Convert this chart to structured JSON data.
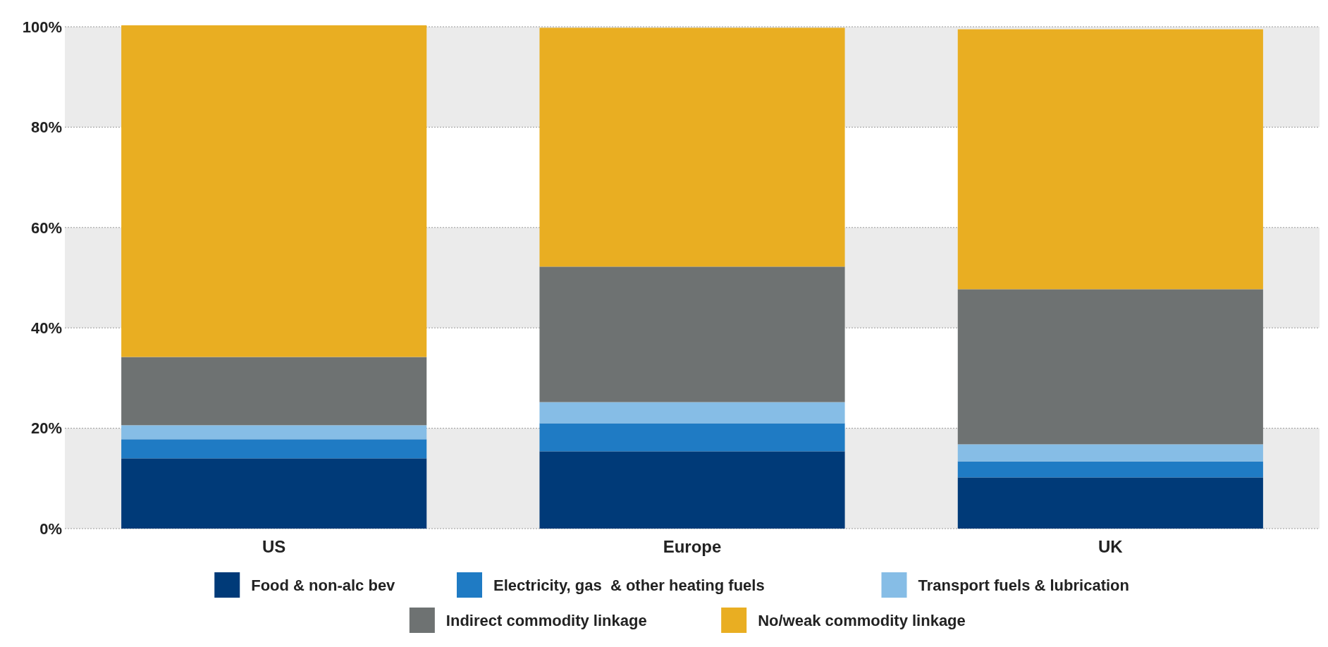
{
  "chart_data": {
    "type": "bar",
    "stacked": true,
    "categories": [
      "US",
      "Europe",
      "UK"
    ],
    "series": [
      {
        "name": "Food & non-alc bev",
        "color": "#003a78",
        "values": [
          14,
          15.4,
          10.2
        ]
      },
      {
        "name": "Electricity, gas  & other heating fuels",
        "color": "#1f7bc4",
        "values": [
          3.8,
          5.6,
          3.2
        ]
      },
      {
        "name": "Transport fuels & lubrication",
        "color": "#86bde6",
        "values": [
          2.8,
          4.2,
          3.4
        ]
      },
      {
        "name": "Indirect commodity linkage",
        "color": "#6e7272",
        "values": [
          13.6,
          27,
          30.9
        ]
      },
      {
        "name": "No/weak commodity linkage",
        "color": "#e9ae22",
        "values": [
          66.1,
          47.6,
          51.8
        ]
      }
    ],
    "ylim": [
      0,
      100
    ],
    "yticks": [
      {
        "value": 0,
        "label": "0%"
      },
      {
        "value": 20,
        "label": "20%"
      },
      {
        "value": 40,
        "label": "40%"
      },
      {
        "value": 60,
        "label": "60%"
      },
      {
        "value": 80,
        "label": "80%"
      },
      {
        "value": 100,
        "label": "100%"
      }
    ],
    "grid": "y",
    "legend": "bottom"
  }
}
